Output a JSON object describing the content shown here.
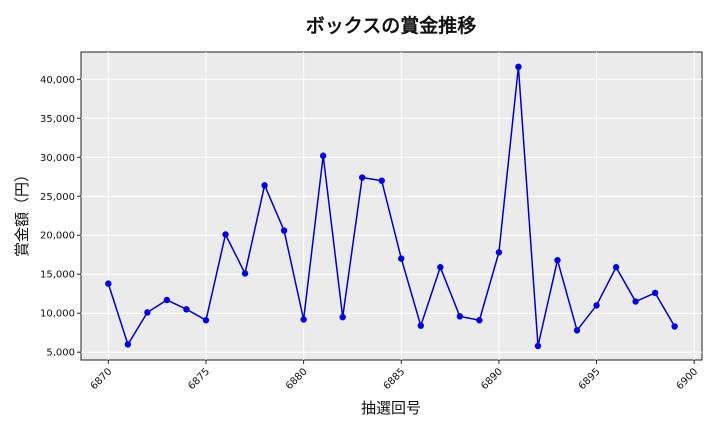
{
  "chart_data": {
    "type": "line",
    "title": "ボックスの賞金推移",
    "xlabel": "抽選回号",
    "ylabel": "賞金額（円）",
    "x": [
      6870,
      6871,
      6872,
      6873,
      6874,
      6875,
      6876,
      6877,
      6878,
      6879,
      6880,
      6881,
      6882,
      6883,
      6884,
      6885,
      6886,
      6887,
      6888,
      6889,
      6890,
      6891,
      6892,
      6893,
      6894,
      6895,
      6896,
      6897,
      6898,
      6899
    ],
    "y": [
      13800,
      6000,
      10100,
      11700,
      10500,
      9100,
      20100,
      15100,
      26400,
      20600,
      9200,
      30200,
      9500,
      27400,
      27000,
      17000,
      8400,
      15900,
      9600,
      9100,
      17800,
      41600,
      5800,
      16800,
      7800,
      11000,
      15900,
      11500,
      12600,
      8300
    ],
    "xlim": [
      6868.6,
      6900.4
    ],
    "ylim": [
      4000,
      43500
    ],
    "xticks": [
      6870,
      6875,
      6880,
      6885,
      6890,
      6895,
      6900
    ],
    "xtick_labels": [
      "6870",
      "6875",
      "6880",
      "6885",
      "6890",
      "6895",
      "6900"
    ],
    "yticks": [
      5000,
      10000,
      15000,
      20000,
      25000,
      30000,
      35000,
      40000
    ],
    "ytick_labels": [
      "5,000",
      "10,000",
      "15,000",
      "20,000",
      "25,000",
      "30,000",
      "35,000",
      "40,000"
    ],
    "grid": true,
    "line_color": "#0000cc",
    "marker_color": "#0000ee",
    "background_color": "#ebebeb"
  }
}
